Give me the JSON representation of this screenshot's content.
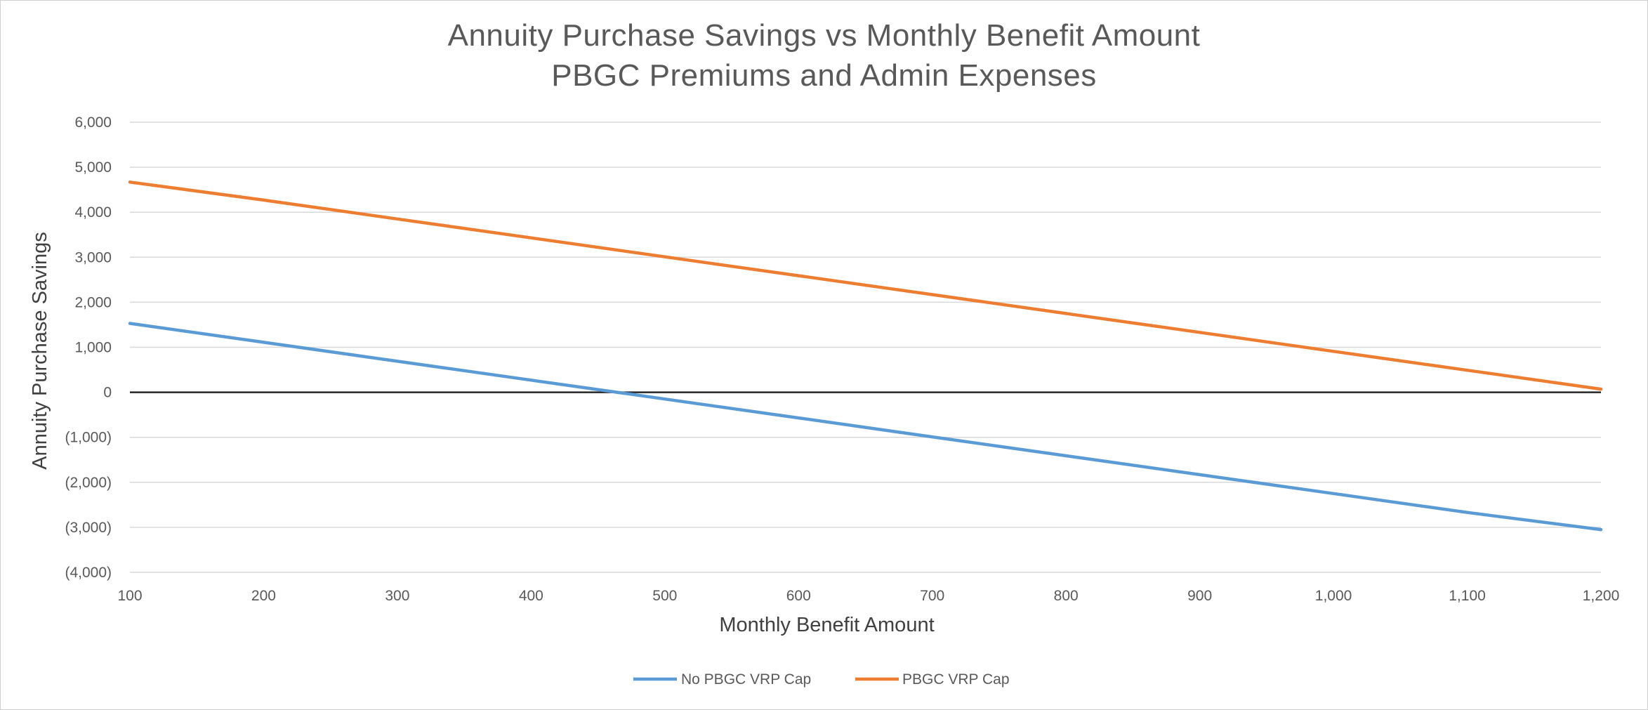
{
  "chart_data": {
    "type": "line",
    "title": "Annuity Purchase Savings vs Monthly Benefit Amount",
    "subtitle": "PBGC Premiums and Admin Expenses",
    "xlabel": "Monthly Benefit Amount",
    "ylabel": "Annuity Purchase Savings",
    "xlim": [
      100,
      1200
    ],
    "ylim": [
      -4000,
      6000
    ],
    "x_ticks": [
      100,
      200,
      300,
      400,
      500,
      600,
      700,
      800,
      900,
      1000,
      1100,
      1200
    ],
    "x_tick_labels": [
      "100",
      "200",
      "300",
      "400",
      "500",
      "600",
      "700",
      "800",
      "900",
      "1,000",
      "1,100",
      "1,200"
    ],
    "y_ticks": [
      6000,
      5000,
      4000,
      3000,
      2000,
      1000,
      0,
      -1000,
      -2000,
      -3000,
      -4000
    ],
    "y_tick_labels": [
      "6,000",
      "5,000",
      "4,000",
      "3,000",
      "2,000",
      "1,000",
      "0",
      "(1,000)",
      "(2,000)",
      "(3,000)",
      "(4,000)"
    ],
    "grid": true,
    "legend_position": "bottom",
    "series": [
      {
        "name": "No PBGC VRP Cap",
        "color": "#5B9BD5",
        "x": [
          100,
          200,
          300,
          400,
          500,
          600,
          700,
          800,
          900,
          1000,
          1100,
          1200
        ],
        "values": [
          1530,
          1110,
          690,
          270,
          -150,
          -570,
          -990,
          -1410,
          -1830,
          -2250,
          -2670,
          -3050
        ]
      },
      {
        "name": "PBGC VRP Cap",
        "color": "#ED7D31",
        "x": [
          100,
          200,
          300,
          400,
          500,
          600,
          700,
          800,
          900,
          1000,
          1100,
          1200
        ],
        "values": [
          4670,
          4270,
          3850,
          3430,
          3010,
          2590,
          2170,
          1750,
          1330,
          910,
          490,
          70
        ]
      }
    ]
  }
}
